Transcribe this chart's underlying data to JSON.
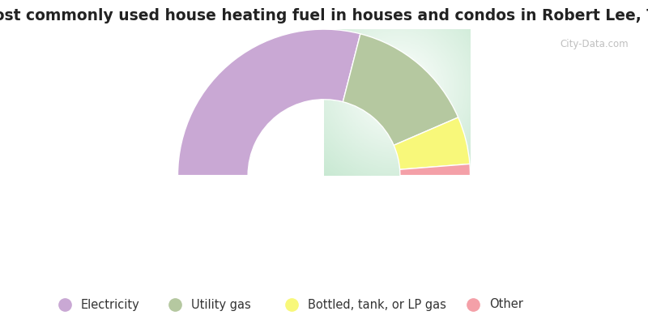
{
  "title": "Most commonly used house heating fuel in houses and condos in Robert Lee, TX",
  "segments": [
    {
      "label": "Electricity",
      "value": 58.0,
      "color": "#c9a8d4"
    },
    {
      "label": "Utility gas",
      "value": 29.0,
      "color": "#b5c8a0"
    },
    {
      "label": "Bottled, tank, or LP gas",
      "value": 10.5,
      "color": "#f8f87a"
    },
    {
      "label": "Other",
      "value": 2.5,
      "color": "#f4a0a8"
    }
  ],
  "bg_gradient_colors": [
    "#c8e8d0",
    "#e8f4ec",
    "#f8faf8",
    "#e8f4ec",
    "#c8e8d0"
  ],
  "legend_bg_color": "#00e8e8",
  "title_fontsize": 13.5,
  "legend_fontsize": 10.5,
  "watermark": "City-Data.com",
  "outer_r": 1.0,
  "inner_r": 0.52
}
